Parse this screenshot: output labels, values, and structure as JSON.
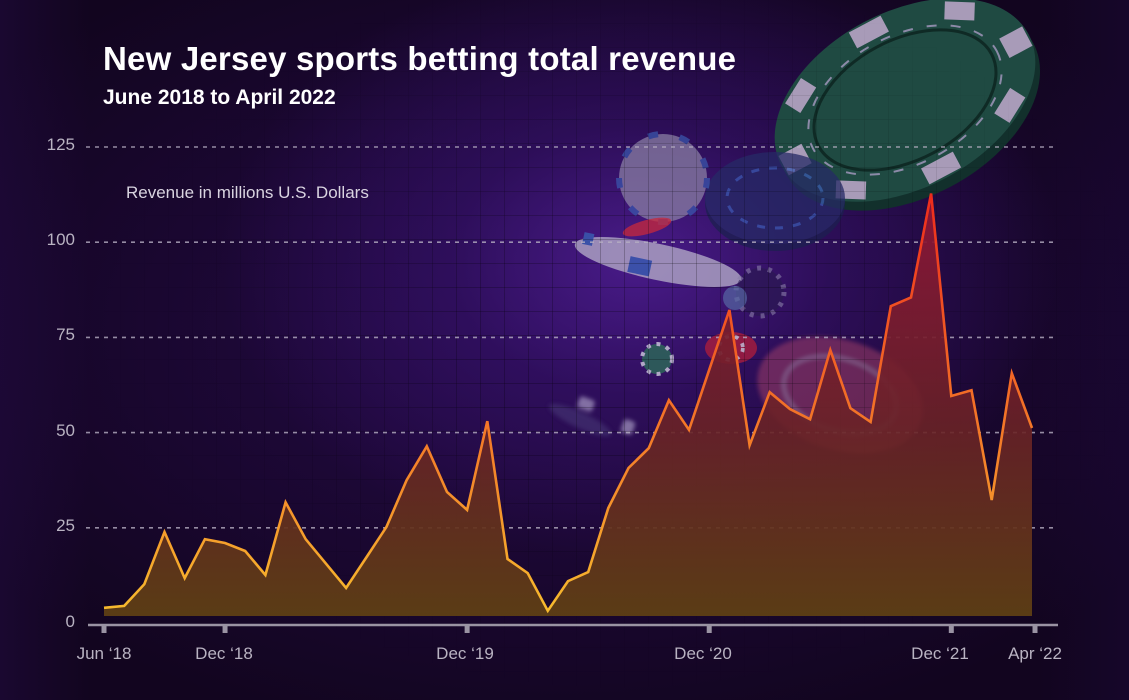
{
  "header": {
    "title": "New Jersey sports betting total revenue",
    "subtitle": "June 2018 to April 2022"
  },
  "axis_note": "Revenue in millions U.S. Dollars",
  "colors": {
    "background": "#12051f",
    "glow": "#3a1478",
    "line_low": "#f7bf2e",
    "line_high": "#ee2a1c",
    "fill_top": "#8e1538",
    "fill_bottom": "#5e3f14",
    "gridline": "#b6aec2",
    "axis": "#9a93a3",
    "chip_green": "#1f4a42",
    "chip_insert": "#a89bb8"
  },
  "chart_data": {
    "type": "area",
    "title": "New Jersey sports betting total revenue",
    "subtitle": "June 2018 to April 2022",
    "xlabel": "",
    "ylabel": "Revenue in millions U.S. Dollars",
    "ylim": [
      0,
      125
    ],
    "yticks": [
      0,
      25,
      50,
      75,
      100,
      125
    ],
    "grid": "horizontal dashed",
    "legend": "none",
    "xtick_labels": [
      {
        "label": "Jun ‘18",
        "index": 0
      },
      {
        "label": "Dec ‘18",
        "index": 6
      },
      {
        "label": "Dec ‘19",
        "index": 18
      },
      {
        "label": "Dec ‘20",
        "index": 30
      },
      {
        "label": "Dec ‘21",
        "index": 42
      },
      {
        "label": "Apr ‘22",
        "index": 46
      }
    ],
    "categories": [
      "Jun 2018",
      "Jul 2018",
      "Aug 2018",
      "Sep 2018",
      "Oct 2018",
      "Nov 2018",
      "Dec 2018",
      "Jan 2019",
      "Feb 2019",
      "Mar 2019",
      "Apr 2019",
      "May 2019",
      "Jun 2019",
      "Jul 2019",
      "Aug 2019",
      "Sep 2019",
      "Oct 2019",
      "Nov 2019",
      "Dec 2019",
      "Jan 2020",
      "Feb 2020",
      "Mar 2020",
      "Apr 2020",
      "May 2020",
      "Jun 2020",
      "Jul 2020",
      "Aug 2020",
      "Sep 2020",
      "Oct 2020",
      "Nov 2020",
      "Dec 2020",
      "Jan 2021",
      "Feb 2021",
      "Mar 2021",
      "Apr 2021",
      "May 2021",
      "Jun 2021",
      "Jul 2021",
      "Aug 2021",
      "Sep 2021",
      "Oct 2021",
      "Nov 2021",
      "Dec 2021",
      "Jan 2022",
      "Feb 2022",
      "Mar 2022",
      "Apr 2022"
    ],
    "values": [
      4.0,
      4.5,
      10.2,
      23.9,
      11.8,
      22.0,
      21.0,
      18.9,
      12.6,
      31.7,
      22.0,
      15.6,
      9.2,
      17.2,
      25.2,
      37.5,
      46.4,
      34.4,
      29.7,
      53.0,
      16.8,
      13.1,
      3.2,
      11.0,
      13.4,
      30.2,
      40.7,
      45.9,
      58.5,
      50.7,
      66.5,
      82.2,
      46.7,
      60.6,
      56.2,
      53.5,
      71.7,
      56.4,
      52.8,
      83.2,
      85.5,
      112.8,
      59.6,
      61.1,
      32.3,
      65.6,
      51.2
    ]
  }
}
